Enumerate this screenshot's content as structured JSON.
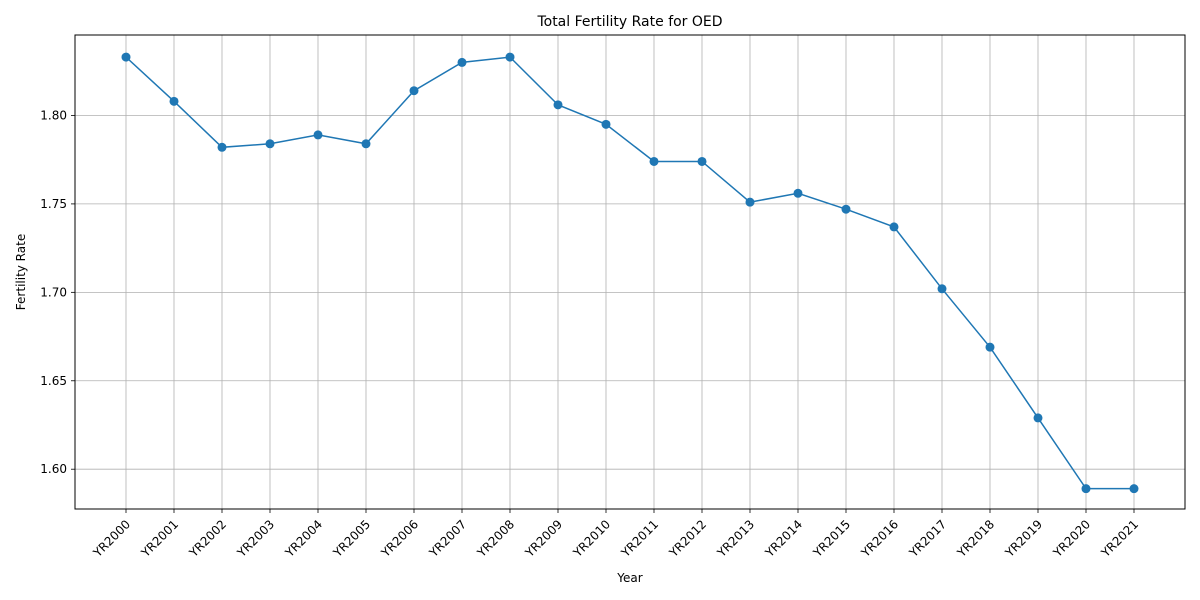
{
  "chart_data": {
    "type": "line",
    "title": "Total Fertility Rate for OED",
    "xlabel": "Year",
    "ylabel": "Fertility Rate",
    "categories": [
      "YR2000",
      "YR2001",
      "YR2002",
      "YR2003",
      "YR2004",
      "YR2005",
      "YR2006",
      "YR2007",
      "YR2008",
      "YR2009",
      "YR2010",
      "YR2011",
      "YR2012",
      "YR2013",
      "YR2014",
      "YR2015",
      "YR2016",
      "YR2017",
      "YR2018",
      "YR2019",
      "YR2020",
      "YR2021"
    ],
    "values": [
      1.833,
      1.808,
      1.782,
      1.784,
      1.789,
      1.784,
      1.814,
      1.83,
      1.833,
      1.806,
      1.795,
      1.774,
      1.774,
      1.751,
      1.756,
      1.747,
      1.737,
      1.702,
      1.669,
      1.629,
      1.589,
      1.589
    ],
    "ylim": [
      1.5775,
      1.8455
    ],
    "yticks": [
      "1.60",
      "1.65",
      "1.70",
      "1.75",
      "1.80"
    ],
    "grid": true,
    "line_color": "#1f77b4",
    "marker": "circle"
  }
}
